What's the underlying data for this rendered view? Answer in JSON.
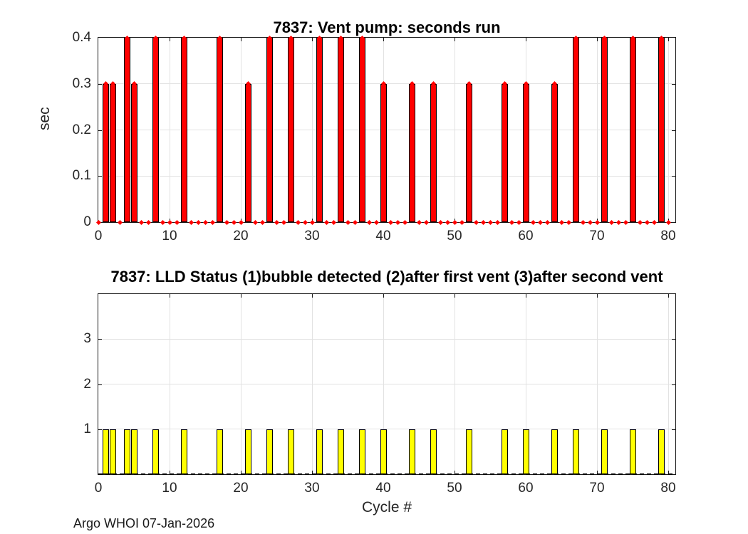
{
  "figure": {
    "footer": "Argo WHOI 07-Jan-2026"
  },
  "chart_data": [
    {
      "type": "bar",
      "id": "vent-pump-seconds-run",
      "title": "7837: Vent pump: seconds run",
      "xlabel": "",
      "ylabel": "sec",
      "xlim": [
        0,
        81
      ],
      "ylim": [
        0,
        0.4
      ],
      "xticks": [
        0,
        10,
        20,
        30,
        40,
        50,
        60,
        70,
        80
      ],
      "yticks": [
        0,
        0.1,
        0.2,
        0.3,
        0.4
      ],
      "ytick_labels": [
        "0",
        "0.1",
        "0.2",
        "0.3",
        "0.4"
      ],
      "grid": true,
      "bar_color": "#ff0000",
      "bar_edge_color": "#000000",
      "marker": "diamond",
      "marker_color": "#ff0000",
      "x_start": 0,
      "x_step": 1,
      "x_name": "cycle",
      "values": [
        0,
        0.3,
        0.3,
        0,
        0.4,
        0.3,
        0,
        0,
        0.4,
        0,
        0,
        0,
        0.4,
        0,
        0,
        0,
        0,
        0.4,
        0,
        0,
        0,
        0.3,
        0,
        0,
        0.4,
        0,
        0,
        0.4,
        0,
        0,
        0,
        0.4,
        0,
        0,
        0.4,
        0,
        0,
        0.4,
        0,
        0,
        0.3,
        0,
        0,
        0,
        0.3,
        0,
        0,
        0.3,
        0,
        0,
        0,
        0,
        0.3,
        0,
        0,
        0,
        0,
        0.3,
        0,
        0,
        0.3,
        0,
        0,
        0,
        0.3,
        0,
        0,
        0.4,
        0,
        0,
        0,
        0.4,
        0,
        0,
        0,
        0.4,
        0,
        0,
        0,
        0.4,
        0
      ]
    },
    {
      "type": "bar",
      "id": "lld-status",
      "title": "7837: LLD Status   (1)bubble detected   (2)after first vent  (3)after second vent",
      "xlabel": "Cycle #",
      "ylabel": "",
      "xlim": [
        0,
        81
      ],
      "ylim": [
        0,
        4
      ],
      "xticks": [
        0,
        10,
        20,
        30,
        40,
        50,
        60,
        70,
        80
      ],
      "yticks": [
        1,
        2,
        3
      ],
      "ytick_labels": [
        "1",
        "2",
        "3"
      ],
      "grid": true,
      "bar_color": "#ffff00",
      "bar_edge_color": "#000000",
      "marker": null,
      "zero_line": "dashed-black",
      "x_start": 0,
      "x_step": 1,
      "x_name": "cycle",
      "values": [
        0,
        1,
        1,
        0,
        1,
        1,
        0,
        0,
        1,
        0,
        0,
        0,
        1,
        0,
        0,
        0,
        0,
        1,
        0,
        0,
        0,
        1,
        0,
        0,
        1,
        0,
        0,
        1,
        0,
        0,
        0,
        1,
        0,
        0,
        1,
        0,
        0,
        1,
        0,
        0,
        1,
        0,
        0,
        0,
        1,
        0,
        0,
        1,
        0,
        0,
        0,
        0,
        1,
        0,
        0,
        0,
        0,
        1,
        0,
        0,
        1,
        0,
        0,
        0,
        1,
        0,
        0,
        1,
        0,
        0,
        0,
        1,
        0,
        0,
        0,
        1,
        0,
        0,
        0,
        1,
        0
      ]
    }
  ]
}
